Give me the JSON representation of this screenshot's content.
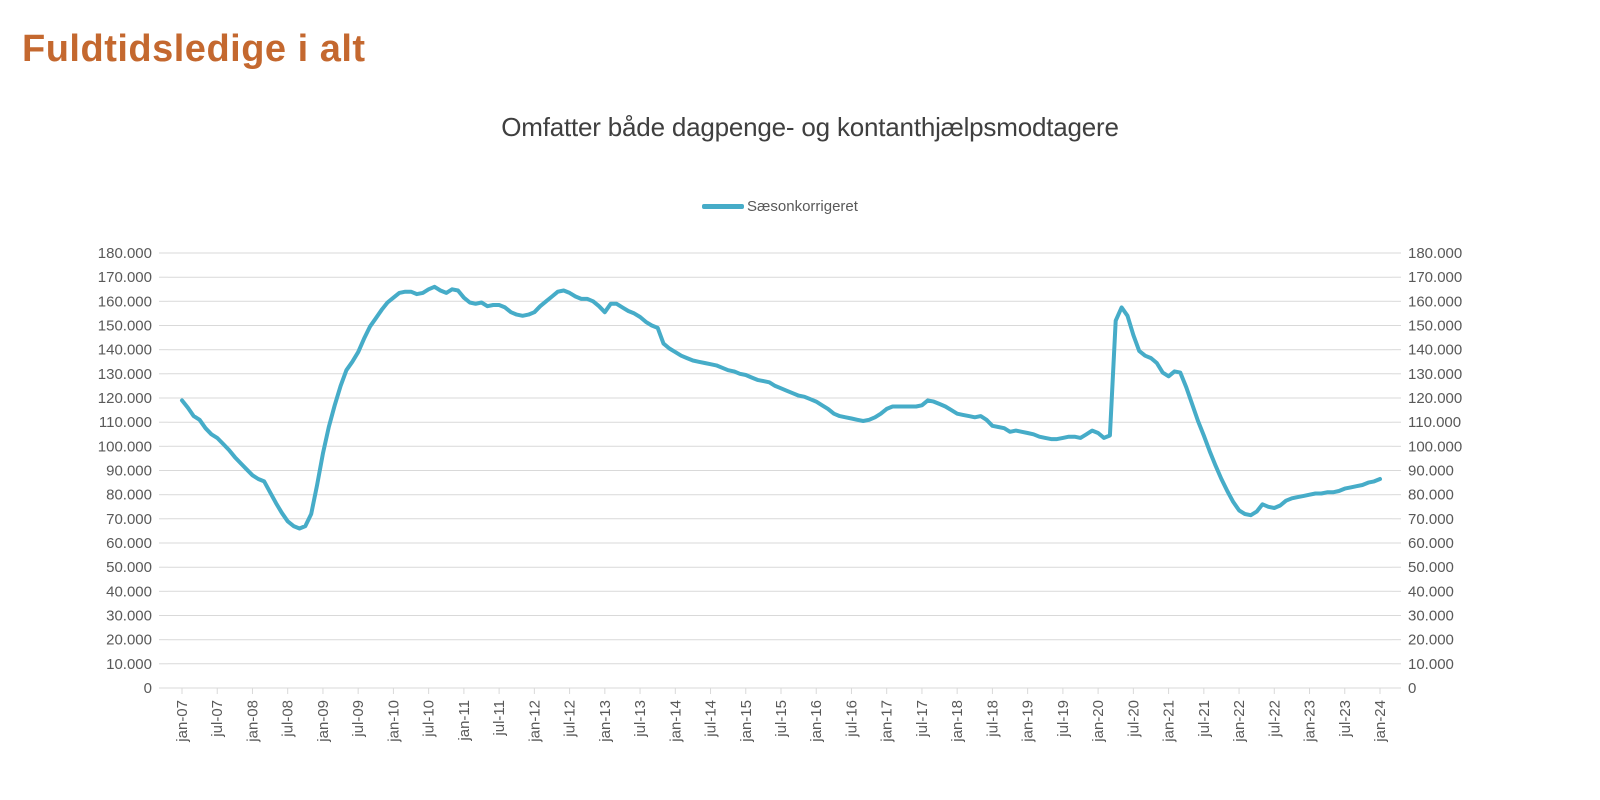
{
  "page": {
    "title": "Fuldtidsledige i alt"
  },
  "colors": {
    "title_text": "#C4682F",
    "subtitle_text": "#3F3F3F",
    "axis_text": "#595959",
    "gridline": "#D9D9D9",
    "series_line": "#46ACC8"
  },
  "chart": {
    "subtitle": "Omfatter både dagpenge- og kontanthjælpsmodtagere",
    "legend_label": "Sæsonkorrigeret"
  },
  "chart_data": {
    "type": "line",
    "title": "Omfatter både dagpenge- og kontanthjælpsmodtagere",
    "legend_position": "top",
    "grid": "horizontal",
    "x_frequency": "monthly",
    "x_start": "jan-07",
    "x_end": "jan-24",
    "x_tick_labels": [
      "jan-07",
      "jul-07",
      "jan-08",
      "jul-08",
      "jan-09",
      "jul-09",
      "jan-10",
      "jul-10",
      "jan-11",
      "jul-11",
      "jan-12",
      "jul-12",
      "jan-13",
      "jul-13",
      "jan-14",
      "jul-14",
      "jan-15",
      "jul-15",
      "jan-16",
      "jul-16",
      "jan-17",
      "jul-17",
      "jan-18",
      "jul-18",
      "jan-19",
      "jul-19",
      "jan-20",
      "jul-20",
      "jan-21",
      "jul-21",
      "jan-22",
      "jul-22",
      "jan-23",
      "jul-23",
      "jan-24"
    ],
    "x_ticks_every_n_points": 6,
    "ylim": [
      0,
      180000
    ],
    "y_tick_step": 10000,
    "y_tick_labels": [
      "0",
      "10.000",
      "20.000",
      "30.000",
      "40.000",
      "50.000",
      "60.000",
      "70.000",
      "80.000",
      "90.000",
      "100.000",
      "110.000",
      "120.000",
      "130.000",
      "140.000",
      "150.000",
      "160.000",
      "170.000",
      "180.000"
    ],
    "y_axis_mirrored_right": true,
    "series": [
      {
        "name": "Sæsonkorrigeret",
        "color": "#46ACC8",
        "values": [
          119000,
          116000,
          112500,
          111000,
          107500,
          105000,
          103500,
          101000,
          98500,
          95500,
          93000,
          90500,
          88000,
          86500,
          85500,
          81000,
          76500,
          72500,
          69000,
          67000,
          66000,
          67000,
          72000,
          84000,
          97000,
          108000,
          117000,
          125000,
          131500,
          135000,
          139000,
          144500,
          149500,
          153000,
          156500,
          159500,
          161500,
          163500,
          164000,
          164000,
          163000,
          163500,
          165000,
          166000,
          164500,
          163500,
          165000,
          164500,
          161500,
          159500,
          159000,
          159500,
          158000,
          158500,
          158500,
          157500,
          155500,
          154500,
          154000,
          154500,
          155500,
          158000,
          160000,
          162000,
          164000,
          164500,
          163500,
          162000,
          161000,
          161000,
          160000,
          158000,
          155500,
          159000,
          159000,
          157500,
          156000,
          155000,
          153500,
          151500,
          150000,
          149000,
          142500,
          140500,
          139000,
          137500,
          136500,
          135500,
          135000,
          134500,
          134000,
          133500,
          132500,
          131500,
          131000,
          130000,
          129500,
          128500,
          127500,
          127000,
          126500,
          125000,
          124000,
          123000,
          122000,
          121000,
          120500,
          119500,
          118500,
          117000,
          115500,
          113500,
          112500,
          112000,
          111500,
          111000,
          110500,
          111000,
          112000,
          113500,
          115500,
          116500,
          116500,
          116500,
          116500,
          116500,
          117000,
          119000,
          118500,
          117500,
          116500,
          115000,
          113500,
          113000,
          112500,
          112000,
          112500,
          111000,
          108500,
          108000,
          107500,
          106000,
          106500,
          106000,
          105500,
          105000,
          104000,
          103500,
          103000,
          103000,
          103500,
          104000,
          104000,
          103500,
          105000,
          106500,
          105500,
          103500,
          104500,
          152000,
          157500,
          154000,
          146000,
          139500,
          137500,
          136500,
          134500,
          130500,
          129000,
          131000,
          130500,
          124500,
          117500,
          110500,
          104500,
          98000,
          92000,
          86500,
          81500,
          77000,
          73500,
          72000,
          71500,
          73000,
          76000,
          75000,
          74500,
          75500,
          77500,
          78500,
          79000,
          79500,
          80000,
          80500,
          80500,
          81000,
          81000,
          81500,
          82500,
          83000,
          83500,
          84000,
          85000,
          85500,
          86500
        ]
      }
    ]
  }
}
